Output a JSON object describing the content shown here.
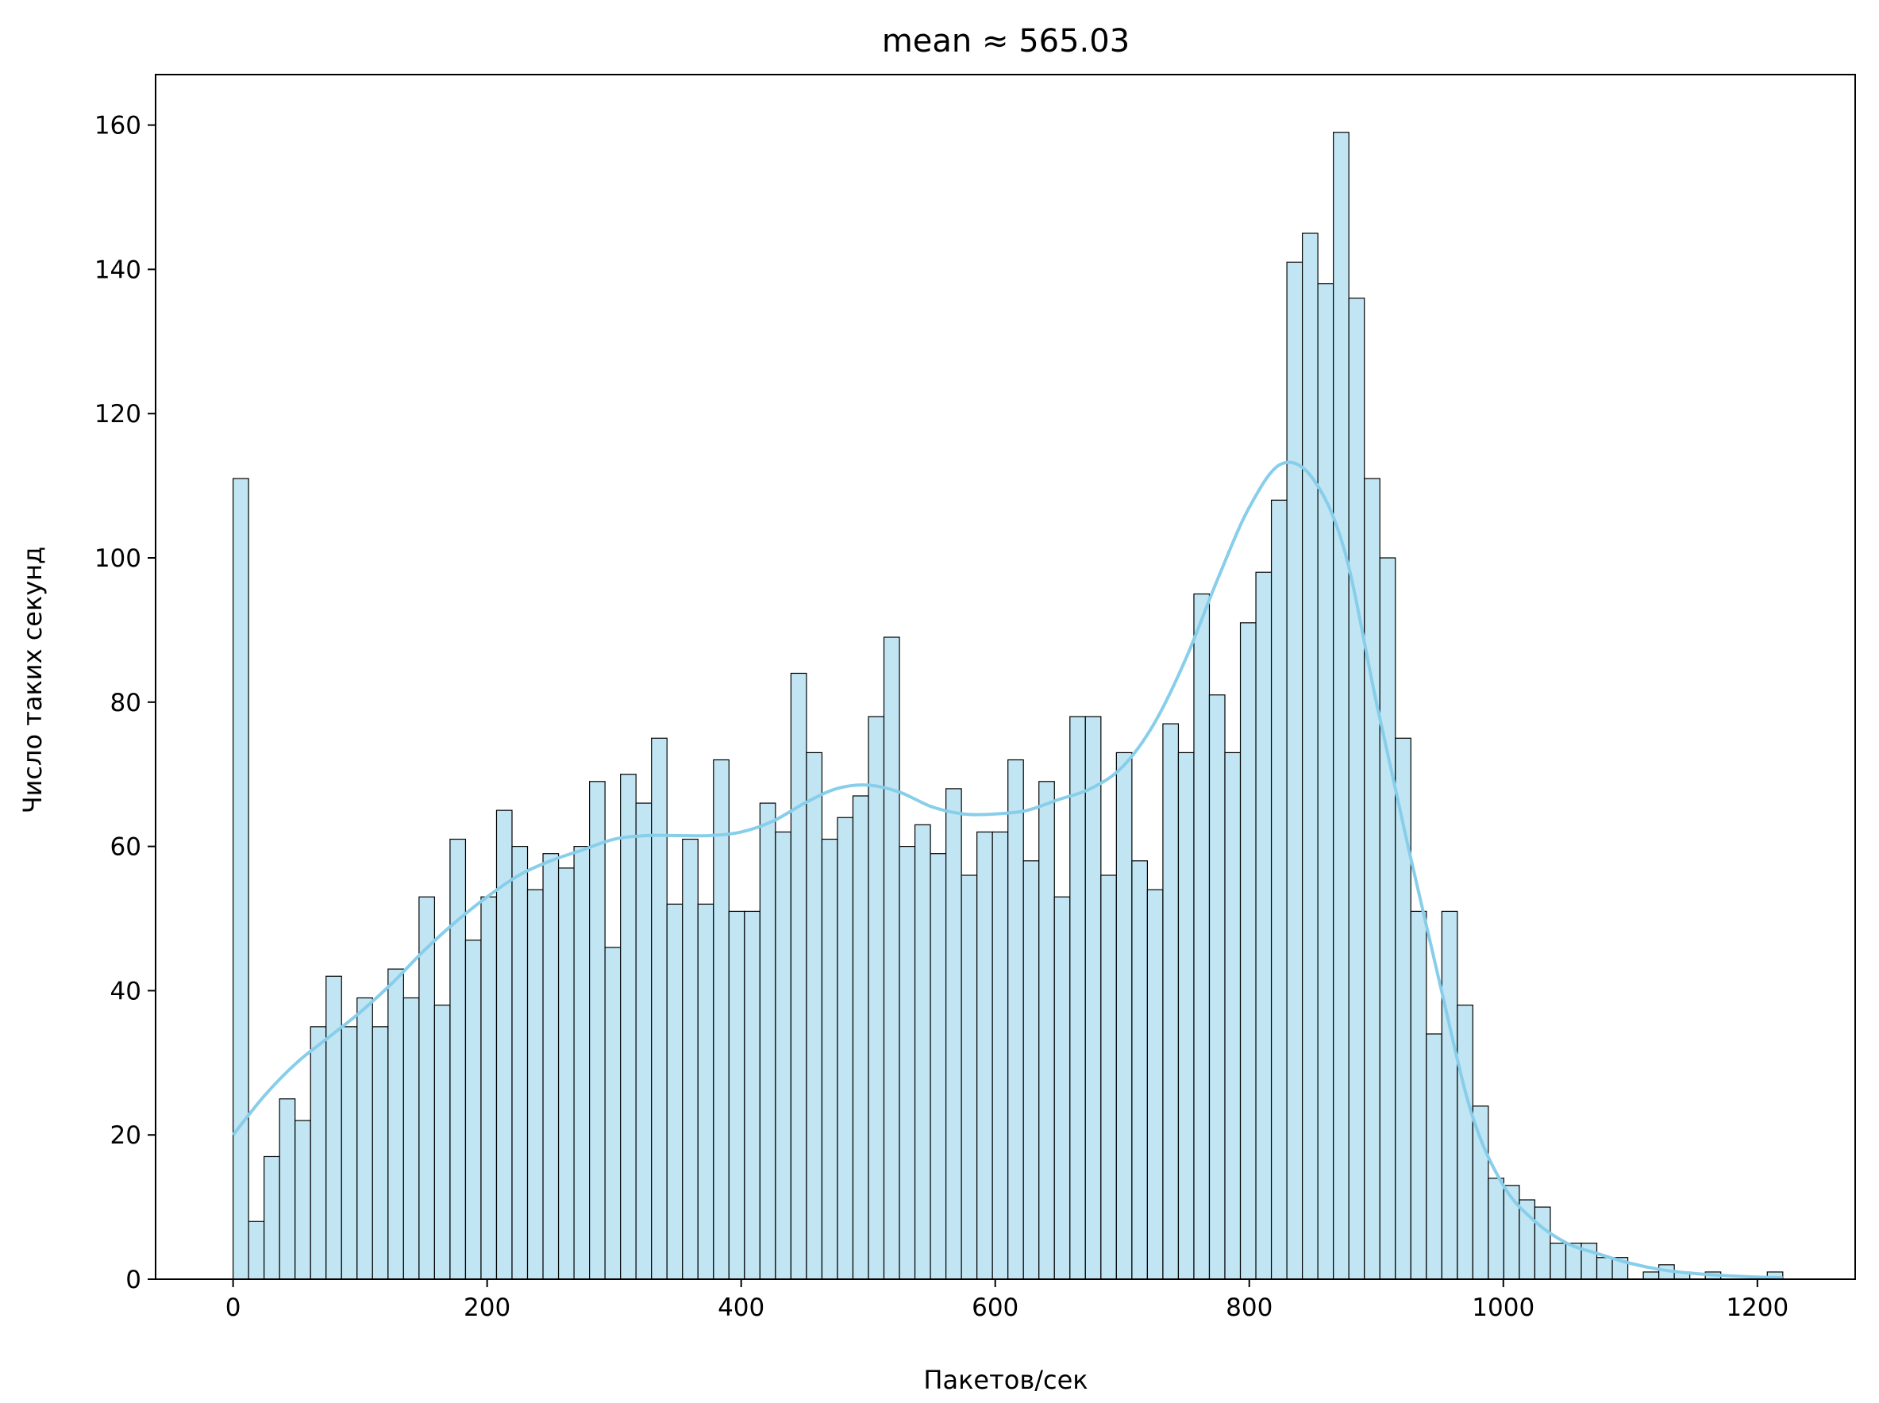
{
  "chart_data": {
    "type": "bar",
    "subtype": "histogram-with-kde",
    "title": "mean ≈ 565.03",
    "xlabel": "Пакетов/сек",
    "ylabel": "Число таких секунд",
    "xlim": [
      -61,
      1277
    ],
    "ylim": [
      0,
      167
    ],
    "xticks": [
      0,
      200,
      400,
      600,
      800,
      1000,
      1200
    ],
    "yticks": [
      0,
      20,
      40,
      60,
      80,
      100,
      120,
      140,
      160
    ],
    "grid": false,
    "legend": "none",
    "colors": {
      "bar_fill": "#c1e5f2",
      "bar_edge": "#000000",
      "kde_line": "#87ceeb",
      "axis": "#000000"
    },
    "bin_start": 0,
    "bin_width": 12.2,
    "counts": [
      111,
      8,
      17,
      25,
      22,
      35,
      42,
      35,
      39,
      35,
      43,
      39,
      53,
      38,
      61,
      47,
      53,
      65,
      60,
      54,
      59,
      57,
      60,
      69,
      46,
      70,
      66,
      75,
      52,
      61,
      52,
      72,
      51,
      51,
      66,
      62,
      84,
      73,
      61,
      64,
      67,
      78,
      89,
      60,
      63,
      59,
      68,
      56,
      62,
      62,
      72,
      58,
      69,
      53,
      78,
      78,
      56,
      73,
      58,
      54,
      77,
      73,
      95,
      81,
      73,
      91,
      98,
      108,
      141,
      145,
      138,
      159,
      136,
      111,
      100,
      75,
      51,
      34,
      51,
      38,
      24,
      14,
      13,
      11,
      10,
      5,
      5,
      5,
      3,
      3,
      0,
      1,
      2,
      1,
      0,
      1,
      0,
      0,
      0,
      1
    ],
    "kde": {
      "x": [
        0,
        25,
        50,
        75,
        100,
        125,
        150,
        175,
        200,
        225,
        250,
        275,
        300,
        325,
        350,
        375,
        400,
        425,
        450,
        475,
        500,
        525,
        550,
        575,
        600,
        625,
        650,
        675,
        700,
        725,
        750,
        775,
        800,
        825,
        850,
        875,
        900,
        925,
        950,
        975,
        1000,
        1025,
        1050,
        1075,
        1100,
        1125,
        1150,
        1175,
        1200,
        1220
      ],
      "y": [
        20,
        25.5,
        30,
        33.5,
        37,
        41,
        45.5,
        49.5,
        53,
        56,
        58,
        59.5,
        61,
        61.5,
        61.5,
        61.5,
        62,
        63.5,
        66,
        68,
        68.5,
        67.5,
        65.5,
        64.5,
        64.5,
        65,
        66.5,
        68,
        71,
        77,
        86,
        97,
        107,
        113,
        111,
        101,
        80,
        60,
        41,
        23,
        13,
        8,
        5,
        3.5,
        2.2,
        1.3,
        0.8,
        0.5,
        0.3,
        0.2
      ]
    }
  }
}
